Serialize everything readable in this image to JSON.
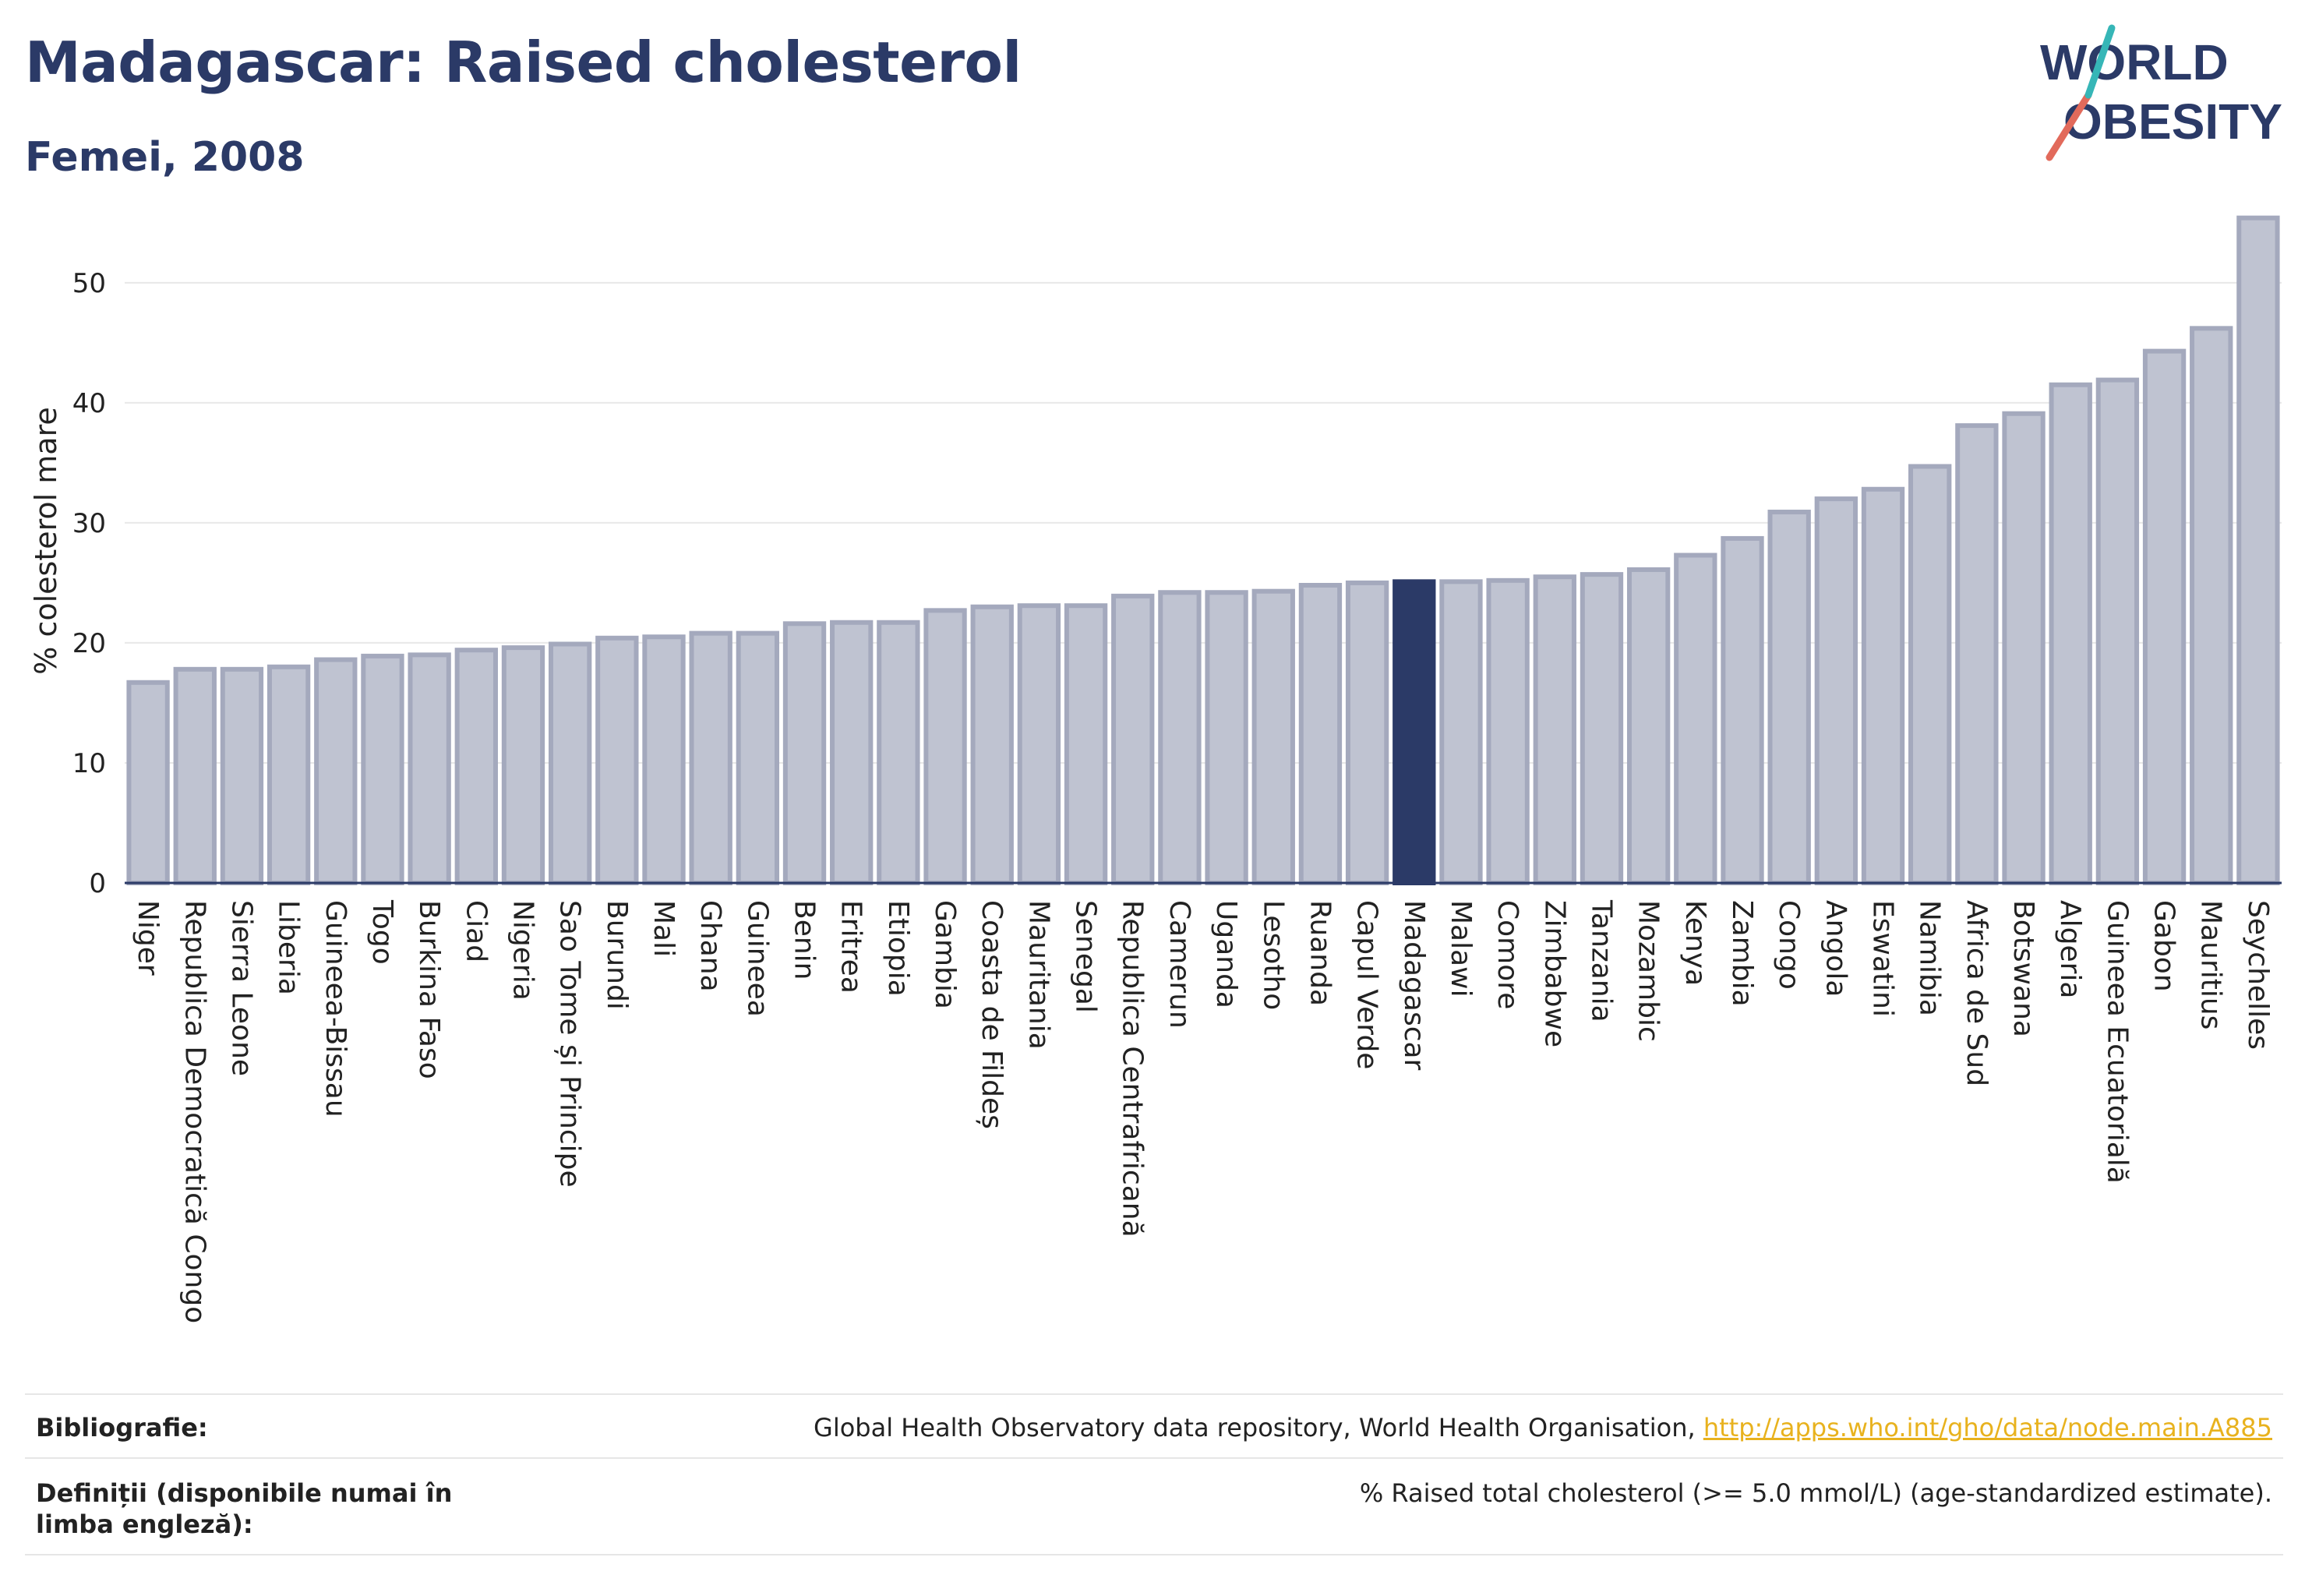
{
  "header": {
    "title": "Madagascar: Raised cholesterol",
    "subtitle": "Femei, 2008"
  },
  "logo": {
    "line1": "WORLD",
    "line2": "OBESITY"
  },
  "chart_data": {
    "type": "bar",
    "title": "Madagascar: Raised cholesterol",
    "subtitle": "Femei, 2008",
    "ylabel": "% colesterol mare",
    "xlabel": "",
    "ylim": [
      0,
      57
    ],
    "yticks": [
      0,
      10,
      20,
      30,
      40,
      50
    ],
    "grid": true,
    "highlight": "Madagascar",
    "colors": {
      "bar": "#bfc3d1",
      "bar_border": "#a4a9bd",
      "highlight": "#2b3a67"
    },
    "categories": [
      "Niger",
      "Republica Democratică Congo",
      "Sierra Leone",
      "Liberia",
      "Guineea-Bissau",
      "Togo",
      "Burkina Faso",
      "Ciad",
      "Nigeria",
      "Sao Tome și Principe",
      "Burundi",
      "Mali",
      "Ghana",
      "Guineea",
      "Benin",
      "Eritrea",
      "Etiopia",
      "Gambia",
      "Coasta de Fildeș",
      "Mauritania",
      "Senegal",
      "Republica Centrafricană",
      "Camerun",
      "Uganda",
      "Lesotho",
      "Ruanda",
      "Capul Verde",
      "Madagascar",
      "Malawi",
      "Comore",
      "Zimbabwe",
      "Tanzania",
      "Mozambic",
      "Kenya",
      "Zambia",
      "Congo",
      "Angola",
      "Eswatini",
      "Namibia",
      "Africa de Sud",
      "Botswana",
      "Algeria",
      "Guineea Ecuatorială",
      "Gabon",
      "Mauritius",
      "Seychelles"
    ],
    "values": [
      16.7,
      17.8,
      17.8,
      18.0,
      18.6,
      18.9,
      19.0,
      19.4,
      19.6,
      19.9,
      20.4,
      20.5,
      20.8,
      20.8,
      21.6,
      21.7,
      21.7,
      22.7,
      23.0,
      23.1,
      23.1,
      23.9,
      24.2,
      24.2,
      24.3,
      24.8,
      25.0,
      25.1,
      25.1,
      25.2,
      25.5,
      25.7,
      26.1,
      27.3,
      28.7,
      30.9,
      32.0,
      32.8,
      34.7,
      38.1,
      39.1,
      41.5,
      41.9,
      44.3,
      46.2,
      55.4
    ]
  },
  "footer": {
    "bibliography_label": "Bibliografie:",
    "bibliography_text": "Global Health Observatory data repository, World Health Organisation, ",
    "bibliography_link": "http://apps.who.int/gho/data/node.main.A885",
    "definitions_label": "Definiții (disponibile numai în limba engleză):",
    "definitions_text": "% Raised total cholesterol (>= 5.0 mmol/L) (age-standardized estimate)."
  }
}
